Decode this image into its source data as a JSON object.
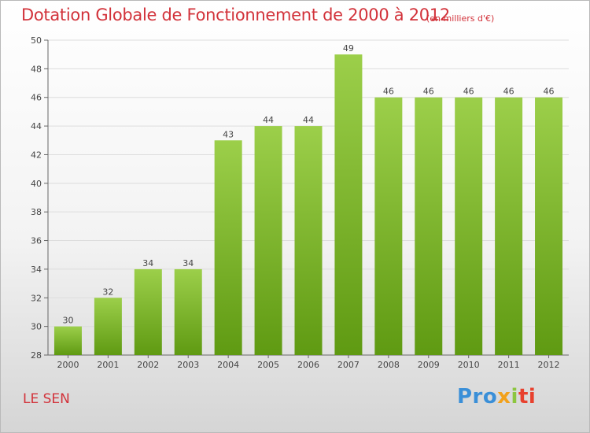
{
  "title": "Dotation Globale de Fonctionnement de 2000 à 2012",
  "subtitle": "(en milliers d'€)",
  "commune": "LE SEN",
  "logo": {
    "p1": "Pro",
    "p2": "x",
    "p3": "i",
    "p4": "ti"
  },
  "colors": {
    "bar_top": "#9ccf4a",
    "bar_bottom": "#5f9a12",
    "grid": "#dddddd",
    "title": "#d2323a"
  },
  "chart_data": {
    "type": "bar",
    "categories": [
      "2000",
      "2001",
      "2002",
      "2003",
      "2004",
      "2005",
      "2006",
      "2007",
      "2008",
      "2009",
      "2010",
      "2011",
      "2012"
    ],
    "values": [
      30,
      32,
      34,
      34,
      43,
      44,
      44,
      49,
      46,
      46,
      46,
      46,
      46
    ],
    "data_labels": [
      "30",
      "32",
      "34",
      "34",
      "43",
      "44",
      "44",
      "49",
      "46",
      "46",
      "46",
      "46",
      "46"
    ],
    "ylim": [
      28,
      50
    ],
    "y_ticks": [
      "28",
      "30",
      "32",
      "34",
      "36",
      "38",
      "40",
      "42",
      "44",
      "46",
      "48",
      "50"
    ],
    "grid": true,
    "xlabel": "",
    "ylabel": ""
  }
}
